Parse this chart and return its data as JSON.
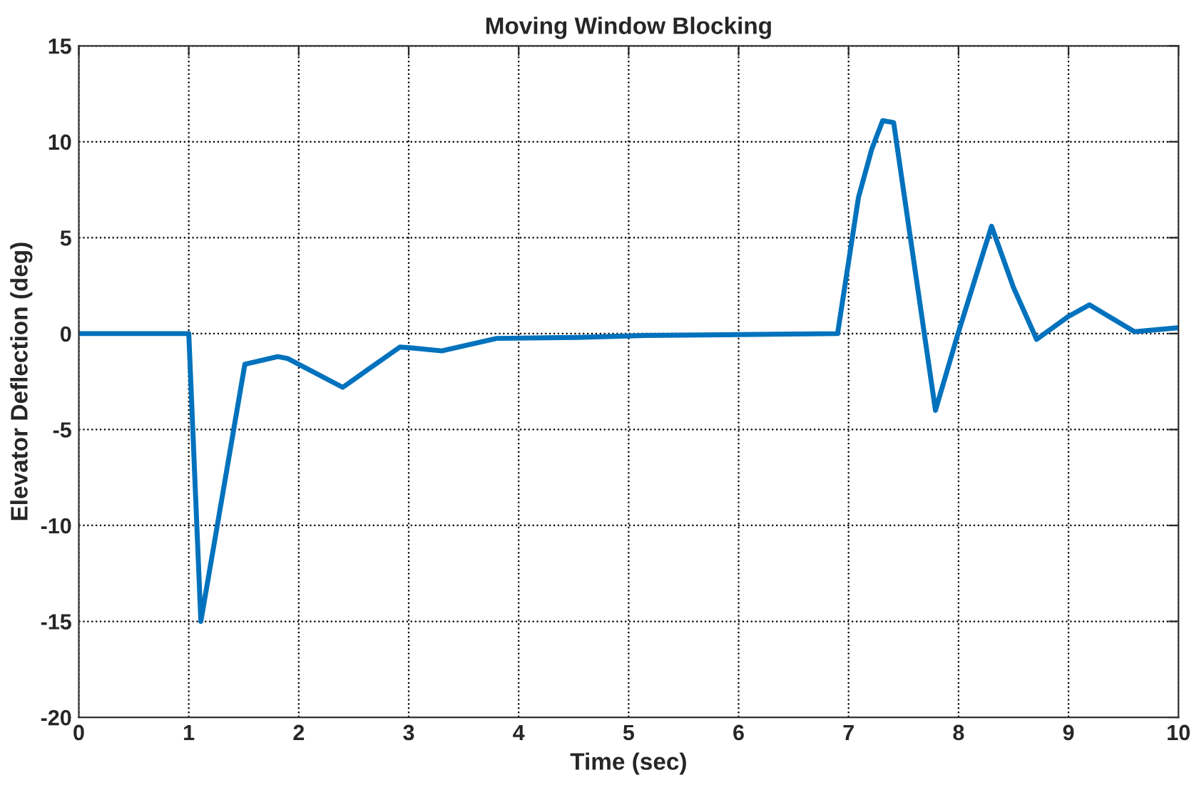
{
  "chart_data": {
    "type": "line",
    "title": "Moving Window Blocking",
    "xlabel": "Time (sec)",
    "ylabel": "Elevator Deflection (deg)",
    "x": [
      0,
      1.0,
      1.11,
      1.51,
      1.81,
      1.9,
      2.4,
      2.92,
      3.03,
      3.3,
      3.8,
      4.54,
      5.15,
      6.0,
      6.9,
      7.09,
      7.21,
      7.31,
      7.41,
      7.79,
      7.99,
      8.3,
      8.5,
      8.71,
      9.0,
      9.19,
      9.6,
      9.99
    ],
    "series": [
      {
        "color": "#0072bd",
        "values": [
          0,
          0,
          -15,
          -1.6,
          -1.2,
          -1.3,
          -2.8,
          -0.7,
          -0.75,
          -0.9,
          -0.25,
          -0.2,
          -0.1,
          -0.05,
          0,
          7.1,
          9.6,
          11.1,
          11.0,
          -4.0,
          -0.1,
          5.6,
          2.4,
          -0.3,
          0.9,
          1.5,
          0.1,
          0.3
        ]
      }
    ],
    "xlim": [
      0,
      10
    ],
    "ylim": [
      -20,
      15
    ],
    "xticks": [
      0,
      1,
      2,
      3,
      4,
      5,
      6,
      7,
      8,
      9,
      10
    ],
    "yticks": [
      -20,
      -15,
      -10,
      -5,
      0,
      5,
      10,
      15
    ],
    "grid": true,
    "line_style": "solid",
    "marker": "none",
    "legend": false
  }
}
